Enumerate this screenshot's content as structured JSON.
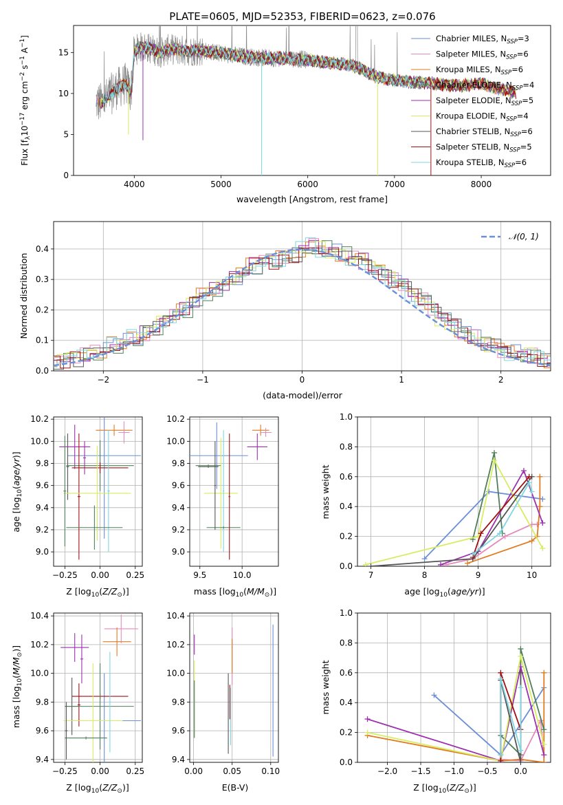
{
  "figure_title": "PLATE=0605, MJD=52353, FIBERID=0623, z=0.076",
  "colors": {
    "Chabrier MILES": "#6a8ed8",
    "Salpeter MILES": "#e68abb",
    "Kroupa MILES": "#e07b1f",
    "Chabrier ELODIE": "#4e7f5a",
    "Salpeter ELODIE": "#9b2fae",
    "Kroupa ELODIE": "#d8ec62",
    "Chabrier STELIB": "#555555",
    "Salpeter STELIB": "#a01010",
    "Kroupa STELIB": "#7fd6e0",
    "data": "#888888",
    "gauss": "#6a8ed8",
    "grid": "#b0b0b0"
  },
  "chart_data": [
    {
      "id": "spectrum",
      "type": "line",
      "title": "PLATE=0605, MJD=52353, FIBERID=0623, z=0.076",
      "xlabel": "wavelength [Angstrom, rest frame]",
      "ylabel": "Flux [f_λ 10^-17 erg cm^-2 s^-1 A^-1]",
      "xlim": [
        3300,
        8800
      ],
      "ylim": [
        0,
        18.3
      ],
      "xticks": [
        "4000",
        "5000",
        "6000",
        "7000",
        "8000"
      ],
      "yticks": [
        "0",
        "5",
        "10",
        "15"
      ],
      "legend_position": "top-right",
      "continuum": {
        "x": [
          3550,
          3620,
          3700,
          3800,
          3900,
          3960,
          4000,
          4050,
          4150,
          4300,
          4400,
          4600,
          4800,
          5000,
          5200,
          5400,
          5600,
          5800,
          6000,
          6200,
          6400,
          6560,
          6700,
          6800,
          7000,
          7200,
          7400,
          7600,
          7800,
          8000,
          8200,
          8400
        ],
        "y": [
          9.0,
          8.8,
          9.6,
          10.6,
          11.2,
          10.0,
          15.0,
          15.6,
          15.6,
          15.0,
          15.4,
          15.2,
          15.2,
          14.9,
          14.6,
          14.4,
          14.3,
          14.3,
          14.1,
          13.8,
          13.6,
          13.3,
          12.5,
          12.0,
          11.6,
          11.4,
          11.3,
          11.0,
          11.0,
          11.2,
          10.6,
          10.1
        ]
      },
      "series": [
        {
          "name": "Chabrier MILES, N_SSP=3",
          "color_key": "Chabrier MILES"
        },
        {
          "name": "Salpeter MILES, N_SSP=6",
          "color_key": "Salpeter MILES"
        },
        {
          "name": "Kroupa MILES, N_SSP=6",
          "color_key": "Kroupa MILES"
        },
        {
          "name": "Chabrier ELODIE, N_SSP=4",
          "color_key": "Chabrier ELODIE"
        },
        {
          "name": "Salpeter ELODIE, N_SSP=5",
          "color_key": "Salpeter ELODIE"
        },
        {
          "name": "Kroupa ELODIE, N_SSP=4",
          "color_key": "Kroupa ELODIE"
        },
        {
          "name": "Chabrier STELIB, N_SSP=6",
          "color_key": "Chabrier STELIB"
        },
        {
          "name": "Salpeter STELIB, N_SSP=5",
          "color_key": "Salpeter STELIB"
        },
        {
          "name": "Kroupa STELIB, N_SSP=6",
          "color_key": "Kroupa STELIB"
        }
      ]
    },
    {
      "id": "residuals",
      "type": "histogram",
      "xlabel": "(data-model)/error",
      "ylabel": "Normed distribution",
      "xlim": [
        -2.5,
        2.5
      ],
      "ylim": [
        0,
        0.49
      ],
      "xticks": [
        "−2",
        "−1",
        "0",
        "1",
        "2"
      ],
      "yticks": [
        "0.0",
        "0.1",
        "0.2",
        "0.3",
        "0.4"
      ],
      "legend": "𝒩(0, 1)",
      "legend_position": "top-right",
      "bin_width": 0.1,
      "profile": [
        0.025,
        0.03,
        0.04,
        0.05,
        0.06,
        0.07,
        0.085,
        0.1,
        0.11,
        0.125,
        0.14,
        0.16,
        0.18,
        0.2,
        0.22,
        0.245,
        0.27,
        0.29,
        0.31,
        0.33,
        0.345,
        0.355,
        0.36,
        0.37,
        0.38,
        0.4,
        0.41,
        0.4,
        0.39,
        0.38,
        0.37,
        0.36,
        0.34,
        0.32,
        0.3,
        0.28,
        0.255,
        0.23,
        0.2,
        0.17,
        0.15,
        0.13,
        0.11,
        0.09,
        0.08,
        0.07,
        0.06,
        0.055,
        0.05,
        0.04,
        0.035
      ]
    },
    {
      "id": "age-vs-Z",
      "type": "errorbar",
      "xlabel": "Z [log10(Z/Z⊙)]",
      "ylabel": "age [log10(age/yr)]",
      "xlim": [
        -0.33,
        0.3
      ],
      "ylim": [
        8.87,
        10.22
      ],
      "xticks": [
        "−0.25",
        "0.00",
        "0.25"
      ],
      "yticks": [
        "9.0",
        "9.2",
        "9.4",
        "9.6",
        "9.8",
        "10.0",
        "10.2"
      ],
      "points": [
        {
          "s": "Chabrier MILES",
          "x": 0.03,
          "xe": 0.26,
          "y": 9.87,
          "ye": 0.75
        },
        {
          "s": "Kroupa MILES",
          "x": 0.1,
          "xe": 0.13,
          "y": 10.1,
          "ye": 0.05
        },
        {
          "s": "Salpeter MILES",
          "x": 0.17,
          "xe": 0.04,
          "y": 10.08,
          "ye": 0.1
        },
        {
          "s": "Salpeter ELODIE",
          "x": -0.18,
          "xe": 0.11,
          "y": 9.95,
          "ye": 0.2
        },
        {
          "s": "Salpeter ELODIE",
          "x": -0.11,
          "xe": 0.01,
          "y": 9.85,
          "ye": 0.15
        },
        {
          "s": "Chabrier STELIB",
          "x": -0.23,
          "xe": 0.01,
          "y": 9.77,
          "ye": 0.3
        },
        {
          "s": "Chabrier ELODIE",
          "x": 0.0,
          "xe": 0.24,
          "y": 9.78,
          "ye": 0.23
        },
        {
          "s": "Salpeter STELIB",
          "x": 0.0,
          "xe": 0.2,
          "y": 9.76,
          "ye": 0.05
        },
        {
          "s": "Salpeter STELIB",
          "x": -0.15,
          "xe": 0.01,
          "y": 9.5,
          "ye": 0.57
        },
        {
          "s": "Kroupa ELODIE",
          "x": -0.02,
          "xe": 0.24,
          "y": 9.53,
          "ye": 0.43
        },
        {
          "s": "Kroupa STELIB",
          "x": 0.06,
          "xe": 0.01,
          "y": 9.55,
          "ye": 0.55
        },
        {
          "s": "Chabrier ELODIE",
          "x": -0.04,
          "xe": 0.2,
          "y": 9.22,
          "ye": 0.2
        },
        {
          "s": "Chabrier ELODIE",
          "x": -0.25,
          "xe": 0.01,
          "y": 9.55,
          "ye": 0.5
        }
      ]
    },
    {
      "id": "age-vs-mass",
      "type": "errorbar",
      "xlabel": "mass [log10(M/M⊙)]",
      "ylabel": "",
      "xlim": [
        9.38,
        10.43
      ],
      "ylim": [
        8.87,
        10.22
      ],
      "xticks": [
        "9.5",
        "10.0"
      ],
      "yticks": [
        "9.0",
        "9.2",
        "9.4",
        "9.6",
        "9.8",
        "10.0",
        "10.2"
      ],
      "points": [
        {
          "s": "Chabrier MILES",
          "x": 9.7,
          "xe": 0.37,
          "y": 9.87,
          "ye": 0.3
        },
        {
          "s": "Kroupa MILES",
          "x": 10.22,
          "xe": 0.1,
          "y": 10.1,
          "ye": 0.05
        },
        {
          "s": "Salpeter MILES",
          "x": 10.28,
          "xe": 0.07,
          "y": 10.08,
          "ye": 0.04
        },
        {
          "s": "Salpeter ELODIE",
          "x": 10.18,
          "xe": 0.12,
          "y": 9.95,
          "ye": 0.12
        },
        {
          "s": "Chabrier STELIB",
          "x": 9.6,
          "xe": 0.12,
          "y": 9.77,
          "ye": 0.01
        },
        {
          "s": "Chabrier ELODIE",
          "x": 9.6,
          "xe": 0.15,
          "y": 9.78,
          "ye": 0.01
        },
        {
          "s": "Kroupa ELODIE",
          "x": 9.75,
          "xe": 0.2,
          "y": 9.53,
          "ye": 0.5
        },
        {
          "s": "Kroupa STELIB",
          "x": 9.78,
          "xe": 0.01,
          "y": 9.55,
          "ye": 0.55
        },
        {
          "s": "Chabrier ELODIE",
          "x": 9.78,
          "xe": 0.2,
          "y": 9.22,
          "ye": 0.01
        },
        {
          "s": "Salpeter STELIB",
          "x": 9.85,
          "xe": 0.01,
          "y": 9.5,
          "ye": 0.57
        },
        {
          "s": "Chabrier STELIB",
          "x": 9.68,
          "xe": 0.01,
          "y": 9.6,
          "ye": 0.4
        }
      ]
    },
    {
      "id": "mass-weight-vs-age",
      "type": "line",
      "xlabel": "age [log10(age/yr)]",
      "ylabel": "mass weight",
      "xlim": [
        6.75,
        10.35
      ],
      "ylim": [
        0,
        1.0
      ],
      "xticks": [
        "7",
        "8",
        "9",
        "10"
      ],
      "yticks": [
        "0.0",
        "0.2",
        "0.4",
        "0.6",
        "0.8",
        "1.0"
      ],
      "series": [
        {
          "s": "Chabrier MILES",
          "x": [
            8.0,
            9.2,
            10.2
          ],
          "y": [
            0.05,
            0.5,
            0.45
          ]
        },
        {
          "s": "Salpeter MILES",
          "x": [
            8.4,
            8.9,
            9.5,
            10.0,
            10.1
          ],
          "y": [
            0.01,
            0.05,
            0.2,
            0.28,
            0.28
          ]
        },
        {
          "s": "Kroupa MILES",
          "x": [
            8.8,
            10.0,
            10.1,
            10.15,
            10.15
          ],
          "y": [
            0.02,
            0.17,
            0.2,
            0.4,
            0.6
          ]
        },
        {
          "s": "Chabrier ELODIE",
          "x": [
            8.9,
            9.3,
            9.45
          ],
          "y": [
            0.18,
            0.76,
            0.22
          ]
        },
        {
          "s": "Salpeter ELODIE",
          "x": [
            8.3,
            9.0,
            9.85,
            10.2
          ],
          "y": [
            0.01,
            0.1,
            0.64,
            0.29
          ]
        },
        {
          "s": "Kroupa ELODIE",
          "x": [
            6.9,
            9.0,
            9.3,
            10.2
          ],
          "y": [
            0.01,
            0.2,
            0.71,
            0.12
          ]
        },
        {
          "s": "Chabrier STELIB",
          "x": [
            7.0,
            8.9,
            10.0
          ],
          "y": [
            0.0,
            0.05,
            0.6
          ]
        },
        {
          "s": "Salpeter STELIB",
          "x": [
            8.9,
            9.05,
            9.95
          ],
          "y": [
            0.06,
            0.22,
            0.6
          ]
        },
        {
          "s": "Kroupa STELIB",
          "x": [
            8.9,
            9.4,
            9.95,
            10.0
          ],
          "y": [
            0.08,
            0.22,
            0.56,
            0.5
          ]
        }
      ]
    },
    {
      "id": "mass-vs-Z",
      "type": "errorbar",
      "xlabel": "Z [log10(Z/Z⊙)]",
      "ylabel": "mass [log10(M/M⊙)]",
      "xlim": [
        -0.33,
        0.3
      ],
      "ylim": [
        9.38,
        10.42
      ],
      "xticks": [
        "−0.25",
        "0.00",
        "0.25"
      ],
      "yticks": [
        "9.4",
        "9.6",
        "9.8",
        "10.0",
        "10.2",
        "10.4"
      ],
      "points": [
        {
          "s": "Chabrier MILES",
          "x": 0.03,
          "xe": 0.26,
          "y": 9.67,
          "ye": 0.33
        },
        {
          "s": "Salpeter MILES",
          "x": 0.15,
          "xe": 0.12,
          "y": 10.31,
          "ye": 0.1
        },
        {
          "s": "Kroupa MILES",
          "x": 0.12,
          "xe": 0.1,
          "y": 10.22,
          "ye": 0.1
        },
        {
          "s": "Salpeter ELODIE",
          "x": -0.18,
          "xe": 0.1,
          "y": 10.18,
          "ye": 0.1
        },
        {
          "s": "Salpeter ELODIE",
          "x": -0.13,
          "xe": 0.01,
          "y": 10.1,
          "ye": 0.17
        },
        {
          "s": "Salpeter STELIB",
          "x": 0.0,
          "xe": 0.2,
          "y": 9.84,
          "ye": 0.02
        },
        {
          "s": "Salpeter STELIB",
          "x": -0.15,
          "xe": 0.01,
          "y": 9.78,
          "ye": 0.15
        },
        {
          "s": "Chabrier STELIB",
          "x": -0.2,
          "xe": 0.05,
          "y": 9.77,
          "ye": 0.2
        },
        {
          "s": "Chabrier ELODIE",
          "x": 0.0,
          "xe": 0.24,
          "y": 9.77,
          "ye": 0.3
        },
        {
          "s": "Kroupa ELODIE",
          "x": -0.05,
          "xe": 0.21,
          "y": 9.67,
          "ye": 0.4
        },
        {
          "s": "Kroupa STELIB",
          "x": 0.07,
          "xe": 0.01,
          "y": 9.8,
          "ye": 0.35
        },
        {
          "s": "Chabrier ELODIE",
          "x": -0.1,
          "xe": 0.15,
          "y": 9.55,
          "ye": 0.01
        },
        {
          "s": "Chabrier STELIB",
          "x": -0.24,
          "xe": 0.01,
          "y": 9.6,
          "ye": 0.2
        }
      ]
    },
    {
      "id": "mass-vs-EBV",
      "type": "errorbar",
      "xlabel": "E(B-V)",
      "ylabel": "",
      "xlim": [
        -0.005,
        0.11
      ],
      "ylim": [
        9.38,
        10.42
      ],
      "xticks": [
        "0.00",
        "0.05",
        "0.10"
      ],
      "yticks": [
        "9.4",
        "9.6",
        "9.8",
        "10.0",
        "10.2",
        "10.4"
      ],
      "points": [
        {
          "s": "Chabrier MILES",
          "x": 0.103,
          "xe": 0,
          "y": 9.88,
          "ye": 0.46
        },
        {
          "s": "Salpeter MILES",
          "x": 0.05,
          "xe": 0,
          "y": 10.12,
          "ye": 0.2
        },
        {
          "s": "Kroupa MILES",
          "x": 0.05,
          "xe": 0,
          "y": 10.12,
          "ye": 0.12
        },
        {
          "s": "Salpeter ELODIE",
          "x": 0.001,
          "xe": 0,
          "y": 10.2,
          "ye": 0.07
        },
        {
          "s": "Kroupa ELODIE",
          "x": 0.001,
          "xe": 0,
          "y": 9.82,
          "ye": 0.27
        },
        {
          "s": "Chabrier ELODIE",
          "x": 0.001,
          "xe": 0,
          "y": 9.75,
          "ye": 0.2
        },
        {
          "s": "Chabrier STELIB",
          "x": 0.045,
          "xe": 0,
          "y": 9.72,
          "ye": 0.28
        },
        {
          "s": "Salpeter STELIB",
          "x": 0.047,
          "xe": 0,
          "y": 9.8,
          "ye": 0.12
        },
        {
          "s": "Kroupa STELIB",
          "x": 0.048,
          "xe": 0,
          "y": 9.7,
          "ye": 0.2
        }
      ]
    },
    {
      "id": "mass-weight-vs-Z",
      "type": "line",
      "xlabel": "Z [log10(Z/Z⊙)]",
      "ylabel": "mass weight",
      "xlim": [
        -2.45,
        0.45
      ],
      "ylim": [
        0,
        1.0
      ],
      "xticks": [
        "−2.0",
        "−1.5",
        "−1.0",
        "−0.5",
        "0.0"
      ],
      "yticks": [
        "0.0",
        "0.2",
        "0.4",
        "0.6",
        "0.8",
        "1.0"
      ],
      "series": [
        {
          "s": "Chabrier MILES",
          "x": [
            -1.3,
            -0.3,
            0.35
          ],
          "y": [
            0.45,
            0.05,
            0.5
          ]
        },
        {
          "s": "Salpeter MILES",
          "x": [
            -0.3,
            0.0,
            0.3,
            0.35
          ],
          "y": [
            0.02,
            0.01,
            0.28,
            0.05
          ]
        },
        {
          "s": "Kroupa MILES",
          "x": [
            -2.3,
            -0.3,
            0.0,
            0.35,
            0.35
          ],
          "y": [
            0.18,
            0.01,
            0.02,
            0.0,
            0.6
          ]
        },
        {
          "s": "Chabrier ELODIE",
          "x": [
            -0.3,
            0.0,
            0.0,
            0.35
          ],
          "y": [
            0.18,
            0.05,
            0.76,
            0.22
          ]
        },
        {
          "s": "Salpeter ELODIE",
          "x": [
            -2.3,
            -0.3,
            0.0,
            0.35
          ],
          "y": [
            0.29,
            0.01,
            0.64,
            0.05
          ]
        },
        {
          "s": "Kroupa ELODIE",
          "x": [
            -2.3,
            -0.3,
            0.0,
            0.35
          ],
          "y": [
            0.2,
            0.01,
            0.71,
            0.12
          ]
        },
        {
          "s": "Chabrier STELIB",
          "x": [
            -0.3,
            -0.3,
            0.0,
            0.0
          ],
          "y": [
            0.0,
            0.55,
            0.0,
            0.6
          ]
        },
        {
          "s": "Salpeter STELIB",
          "x": [
            -0.3,
            -0.3,
            0.0
          ],
          "y": [
            0.01,
            0.6,
            0.22
          ]
        },
        {
          "s": "Kroupa STELIB",
          "x": [
            -0.3,
            -0.3,
            0.0,
            0.0
          ],
          "y": [
            0.05,
            0.56,
            0.08,
            0.5
          ]
        }
      ]
    }
  ]
}
